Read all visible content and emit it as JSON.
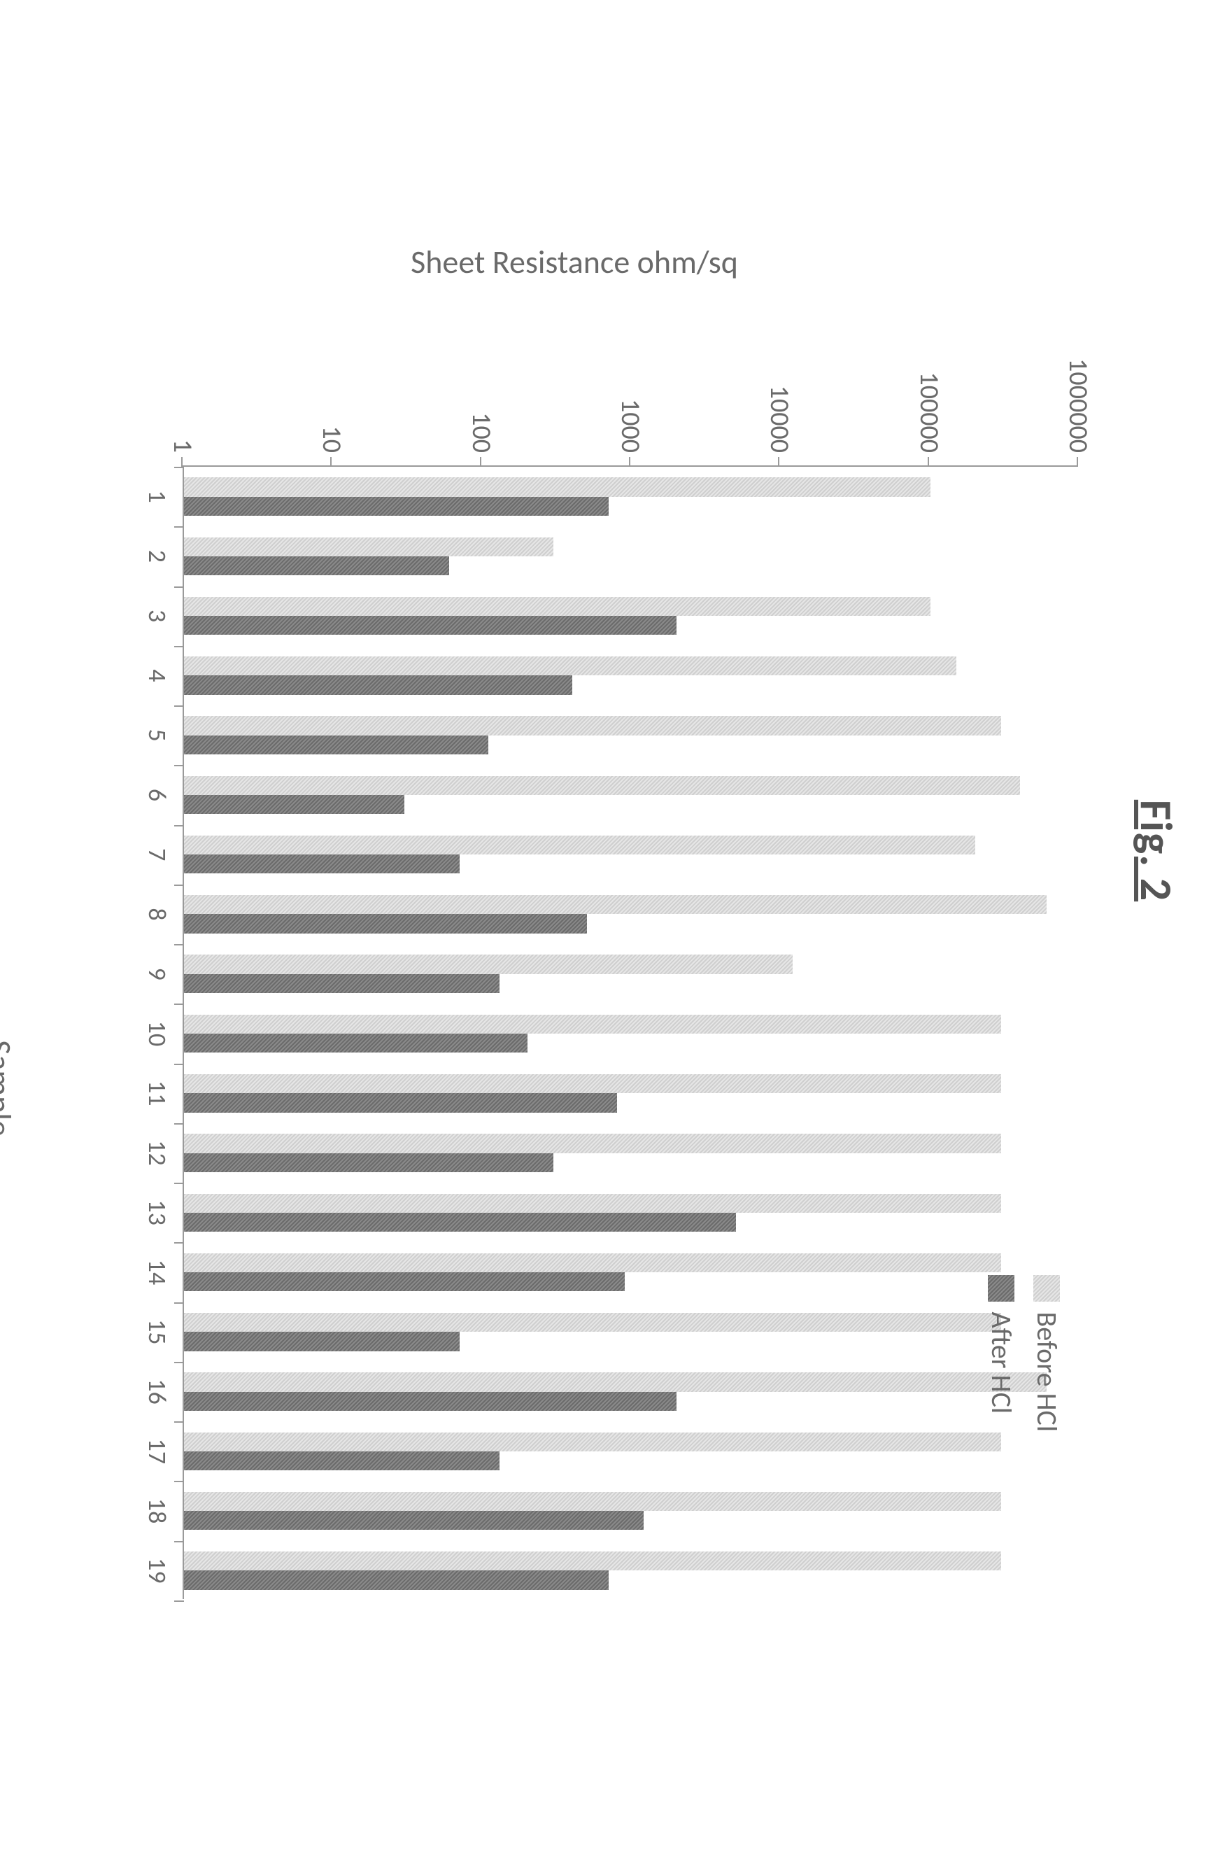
{
  "figure": {
    "title": "Fig. 2",
    "title_fontsize": 64,
    "title_color": "#555555",
    "background_color": "#ffffff"
  },
  "chart": {
    "type": "bar",
    "x_label": "Sample",
    "y_label": "Sheet Resistance ohm/sq",
    "label_fontsize": 46,
    "label_color": "#6a6a6a",
    "tick_fontsize": 38,
    "tick_color": "#6a6a6a",
    "axis_color": "#9a9a9a",
    "y_scale": "log",
    "ylim": [
      1,
      1000000
    ],
    "y_ticks": [
      1,
      10,
      100,
      1000,
      10000,
      100000,
      1000000
    ],
    "y_tick_labels": [
      "1",
      "10",
      "100",
      "1000",
      "10000",
      "100000",
      "1000000"
    ],
    "categories": [
      "1",
      "2",
      "3",
      "4",
      "5",
      "6",
      "7",
      "8",
      "9",
      "10",
      "11",
      "12",
      "13",
      "14",
      "15",
      "16",
      "17",
      "18",
      "19"
    ],
    "series": [
      {
        "name": "Before HCl",
        "key": "before",
        "color": "#d8d8d8",
        "pattern": "grainy-light",
        "bar_width": 0.32,
        "values": [
          100000,
          300,
          100000,
          150000,
          300000,
          400000,
          200000,
          600000,
          12000,
          300000,
          300000,
          300000,
          300000,
          300000,
          300000,
          600000,
          300000,
          300000,
          300000
        ]
      },
      {
        "name": "After HCl",
        "key": "after",
        "color": "#7b7b7b",
        "pattern": "grainy-dark",
        "bar_width": 0.32,
        "values": [
          700,
          60,
          2000,
          400,
          110,
          30,
          70,
          500,
          130,
          200,
          800,
          300,
          5000,
          900,
          70,
          2000,
          130,
          1200,
          700
        ]
      }
    ],
    "legend": {
      "position": "right-top",
      "fontsize": 40,
      "items": [
        "Before HCl",
        "After HCl"
      ]
    }
  }
}
